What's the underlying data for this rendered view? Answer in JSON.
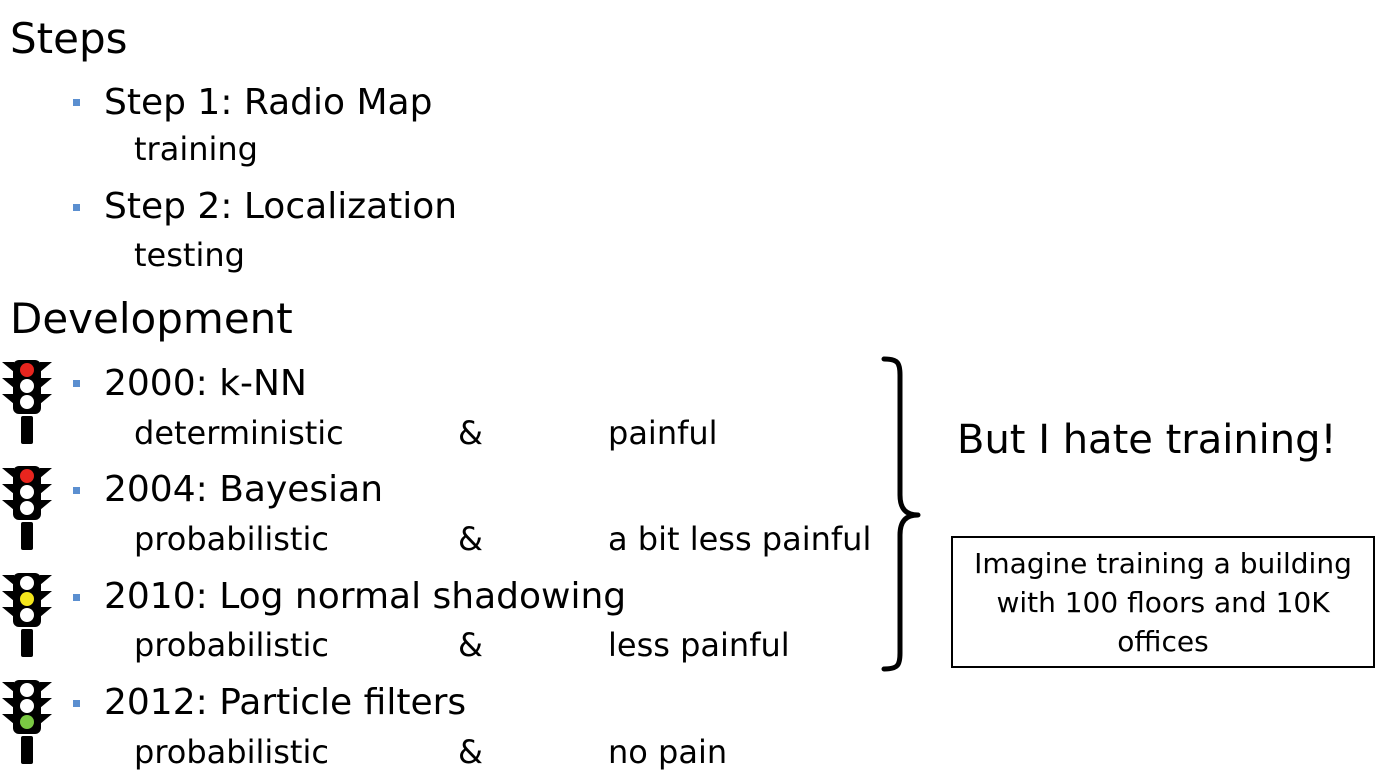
{
  "steps": {
    "title": "Steps",
    "items": [
      {
        "label": "Step 1: Radio Map",
        "sub": "training"
      },
      {
        "label": "Step 2: Localization",
        "sub": "testing"
      }
    ]
  },
  "development": {
    "title": "Development",
    "items": [
      {
        "label": "2000: k-NN",
        "type": "deterministic",
        "amp": "&",
        "pain": "painful",
        "light": "red"
      },
      {
        "label": "2004: Bayesian",
        "type": "probabilistic",
        "amp": "&",
        "pain": "a bit less painful",
        "light": "red"
      },
      {
        "label": "2010: Log normal shadowing",
        "type": "probabilistic",
        "amp": "&",
        "pain": "less painful",
        "light": "yellow"
      },
      {
        "label": "2012: Particle filters",
        "type": "probabilistic",
        "amp": "&",
        "pain": "no pain",
        "light": "green"
      }
    ]
  },
  "callout": {
    "text": "But I hate training!",
    "box_text": "Imagine training a building with 100 floors and 10K offices"
  },
  "colors": {
    "bullet": "#5b8fd0",
    "red": "#e8251e",
    "yellow": "#f4e61c",
    "green": "#7ac943"
  }
}
